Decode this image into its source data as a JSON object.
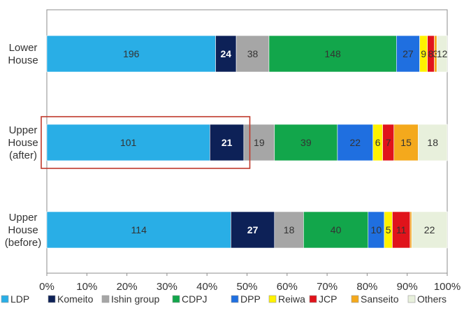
{
  "chart_data": {
    "type": "bar",
    "orientation": "horizontal",
    "stacked": "percent",
    "categories": [
      "Lower\nHouse",
      "Upper\nHouse\n(after)",
      "Upper\nHouse\n(before)"
    ],
    "series": [
      {
        "name": "LDP",
        "color": "#29aee6",
        "values": [
          196,
          101,
          114
        ]
      },
      {
        "name": "Komeito",
        "color": "#0d2157",
        "values": [
          24,
          21,
          27
        ]
      },
      {
        "name": "Ishin group",
        "color": "#a6a6a6",
        "values": [
          38,
          19,
          18
        ]
      },
      {
        "name": "CDPJ",
        "color": "#12a64b",
        "values": [
          148,
          39,
          40
        ]
      },
      {
        "name": "DPP",
        "color": "#1f6fe0",
        "values": [
          27,
          22,
          10
        ]
      },
      {
        "name": "Reiwa",
        "color": "#fff200",
        "values": [
          9,
          6,
          5
        ]
      },
      {
        "name": "JCP",
        "color": "#e0131b",
        "values": [
          8,
          7,
          11
        ]
      },
      {
        "name": "Sanseito",
        "color": "#f4a91c",
        "values": [
          3,
          15,
          1
        ]
      },
      {
        "name": "Others",
        "color": "#e8f0dc",
        "values": [
          12,
          18,
          22
        ]
      }
    ],
    "segment_labels": [
      [
        "196",
        "24",
        "38",
        "148",
        "27",
        "9",
        "8",
        "3",
        "12"
      ],
      [
        "101",
        "21",
        "19",
        "39",
        "22",
        "6",
        "7",
        "15",
        "18"
      ],
      [
        "114",
        "27",
        "18",
        "40",
        "10",
        "5",
        "11",
        "",
        "22"
      ]
    ],
    "xlim": [
      0,
      100
    ],
    "xticks": [
      "0%",
      "10%",
      "20%",
      "30%",
      "40%",
      "50%",
      "60%",
      "70%",
      "80%",
      "90%",
      "100%"
    ],
    "grid": false,
    "legend": "bottom",
    "highlight": {
      "category_index": 1,
      "x_range": [
        0,
        50
      ],
      "color": "#c0392b"
    }
  }
}
